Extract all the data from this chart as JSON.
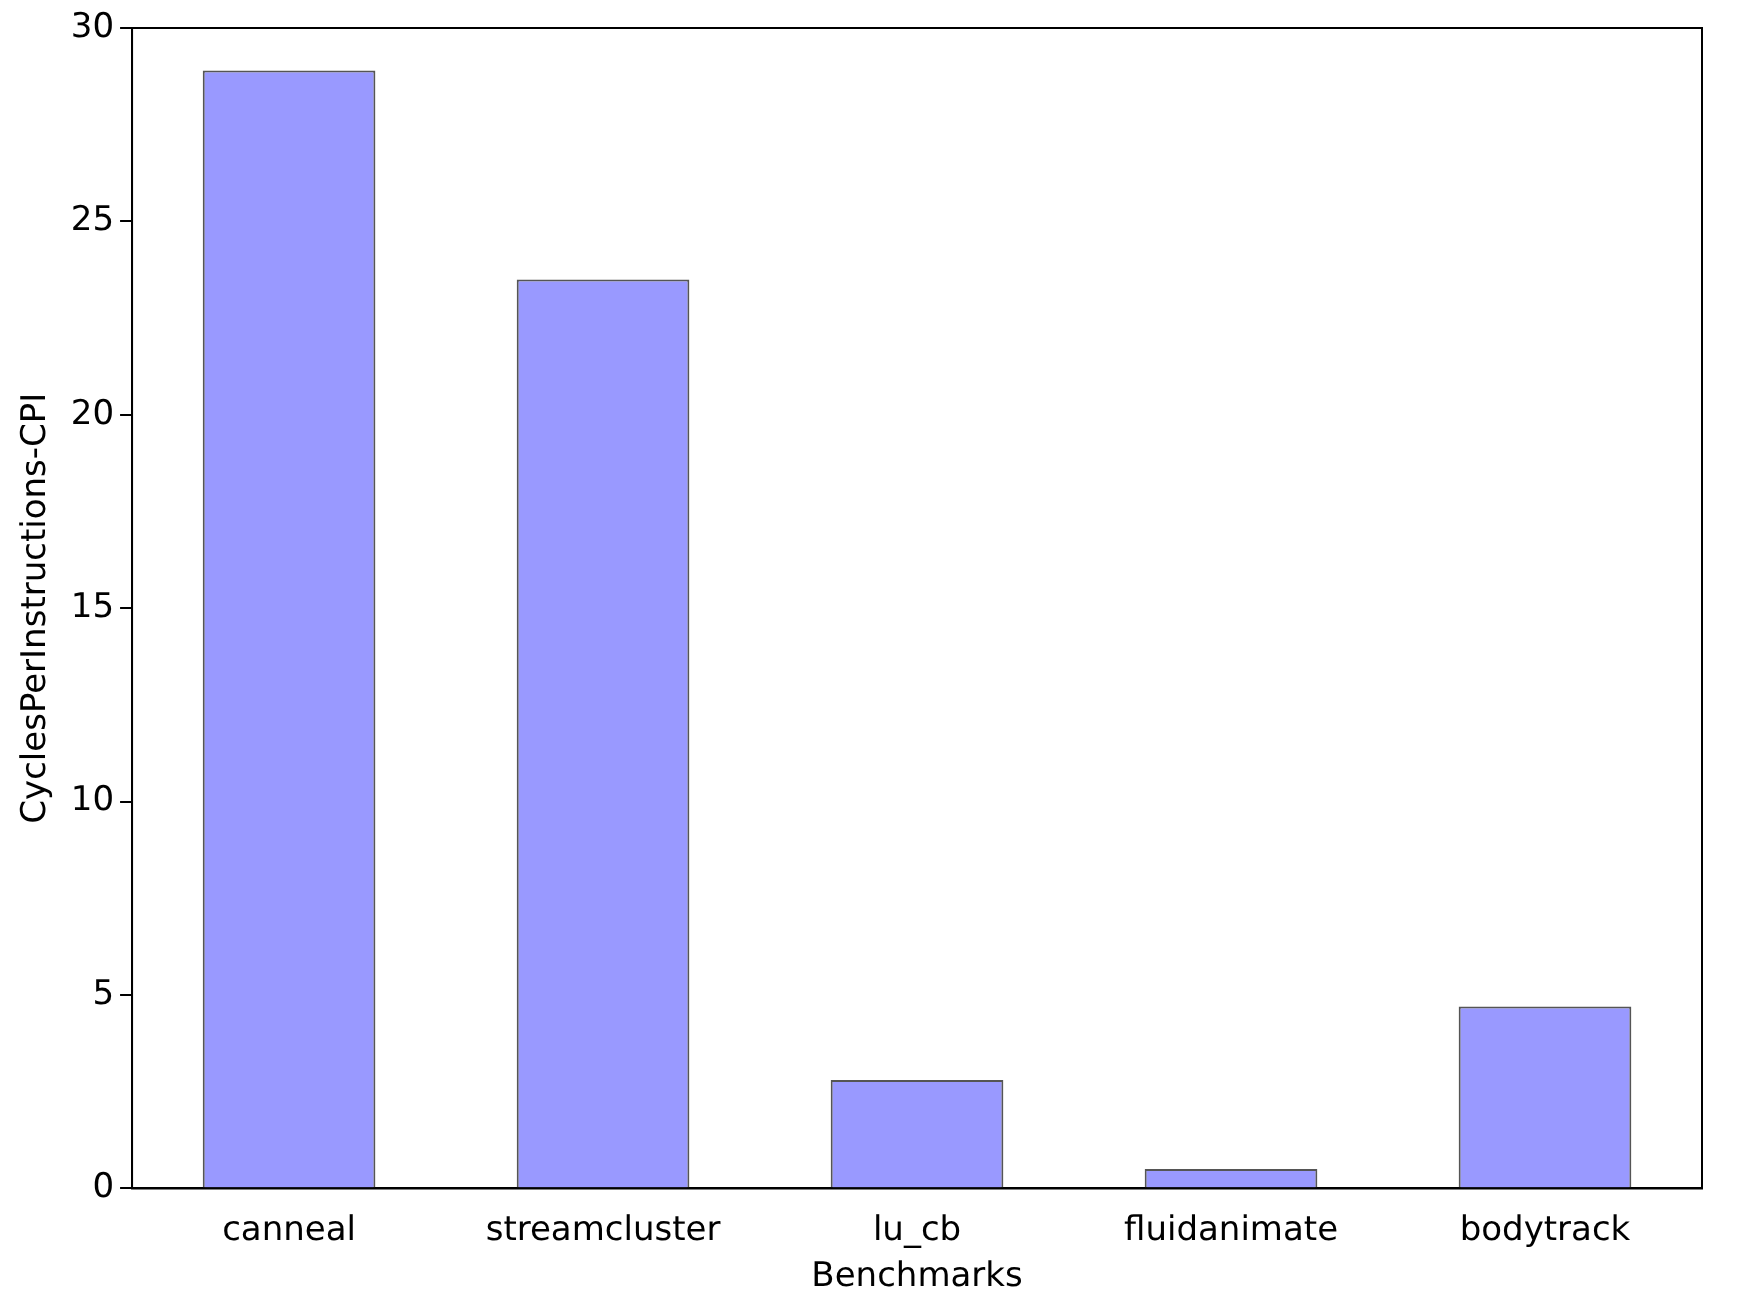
{
  "chart_data": {
    "type": "bar",
    "xlabel": "Benchmarks",
    "ylabel": "CyclesPerInstructions-CPI",
    "categories": [
      "canneal",
      "streamcluster",
      "lu_cb",
      "fluidanimate",
      "bodytrack"
    ],
    "values": [
      28.9,
      23.5,
      2.8,
      0.5,
      4.7
    ],
    "color": "#9999ff",
    "ylim": [
      0,
      30
    ],
    "yticks": [
      0,
      5,
      10,
      15,
      20,
      25,
      30
    ],
    "grid": false,
    "legend": false
  }
}
